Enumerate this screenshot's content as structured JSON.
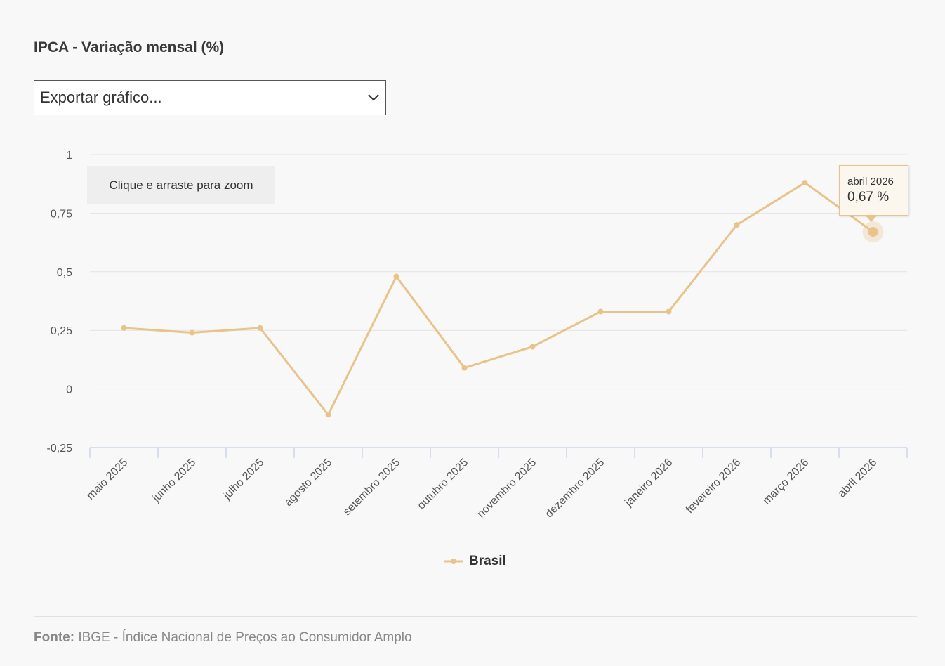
{
  "title": "IPCA - Variação mensal (%)",
  "export": {
    "selected_label": "Exportar gráfico...",
    "chevron_icon": "chevron-down-icon"
  },
  "zoom_hint": "Clique e arraste para zoom",
  "tooltip": {
    "date": "abril 2026",
    "value": "0,67 %"
  },
  "legend": {
    "label": "Brasil"
  },
  "source": {
    "label": "Fonte:",
    "text": "IBGE - Índice Nacional de Preços ao Consumidor Amplo"
  },
  "colors": {
    "series": "#e8c38a",
    "grid": "#e3e3e3",
    "axis": "#ccd6eb",
    "background": "#f8f8f8"
  },
  "chart_data": {
    "type": "line",
    "title": "IPCA - Variação mensal (%)",
    "xlabel": "",
    "ylabel": "",
    "ylim": [
      -0.25,
      1
    ],
    "yticks": [
      -0.25,
      0,
      0.25,
      0.5,
      0.75,
      1
    ],
    "ytick_labels": [
      "-0,25",
      "0",
      "0,25",
      "0,5",
      "0,75",
      "1"
    ],
    "categories": [
      "maio 2025",
      "junho 2025",
      "julho 2025",
      "agosto 2025",
      "setembro 2025",
      "outubro 2025",
      "novembro 2025",
      "dezembro 2025",
      "janeiro 2026",
      "fevereiro 2026",
      "março 2026",
      "abril 2026"
    ],
    "series": [
      {
        "name": "Brasil",
        "values": [
          0.26,
          0.24,
          0.26,
          -0.11,
          0.48,
          0.09,
          0.18,
          0.33,
          0.33,
          0.7,
          0.88,
          0.67
        ]
      }
    ],
    "highlighted_index": 11,
    "grid": true,
    "legend_position": "bottom-center"
  }
}
